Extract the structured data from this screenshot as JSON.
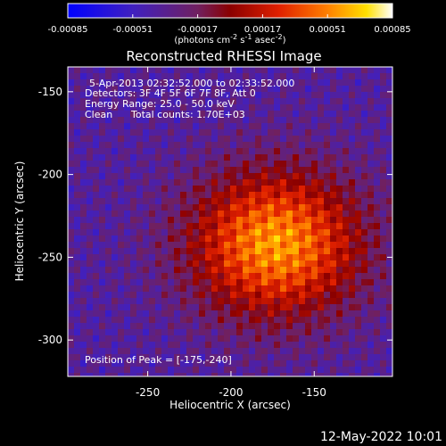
{
  "colorbar": {
    "tick_labels": [
      "-0.00085",
      "-0.00051",
      "-0.00017",
      "0.00017",
      "0.00051",
      "0.00085"
    ],
    "units": "(photons cm",
    "units_exp1": "-2",
    "units_mid": " s",
    "units_exp2": "-1",
    "units_mid2": " asec",
    "units_exp3": "-2",
    "units_end": ")",
    "range": [
      -0.00085,
      0.00085
    ]
  },
  "chart_data": {
    "type": "heatmap",
    "title": "Reconstructed RHESSI Image",
    "xlabel": "Heliocentric X (arcsec)",
    "ylabel": "Heliocentric Y (arcsec)",
    "xlim": [
      -298,
      -103
    ],
    "ylim": [
      -322,
      -135
    ],
    "x_ticks": [
      -250,
      -200,
      -150
    ],
    "y_ticks": [
      -300,
      -250,
      -200,
      -150
    ],
    "x_tick_labels": [
      "-250",
      "-200",
      "-150"
    ],
    "y_tick_labels": [
      "-300",
      "-250",
      "-200",
      "-150"
    ],
    "peak": [
      -175,
      -240
    ],
    "grid": false,
    "colormap": "blue-purple-red-yellow-white",
    "annotations": [
      "5-Apr-2013 02:32:52.000 to 02:33:52.000",
      "Detectors: 3F 4F 5F 6F 7F 8F, Att 0",
      "Energy Range: 25.0 - 50.0 keV",
      "Clean",
      "Total counts: 1.70E+03",
      "Position of Peak = [-175,-240]"
    ]
  },
  "footer": {
    "date": "12-May-2022 10:01"
  }
}
